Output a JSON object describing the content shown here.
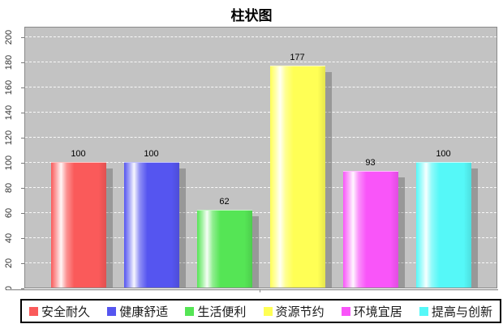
{
  "chart_data": {
    "type": "bar",
    "title": "柱状图",
    "categories": [
      "安全耐久",
      "健康舒适",
      "生活便利",
      "资源节约",
      "环境宜居",
      "提高与创新"
    ],
    "values": [
      100,
      100,
      62,
      177,
      93,
      100
    ],
    "colors": [
      "#fa5a5a",
      "#5555f0",
      "#55e555",
      "#ffff55",
      "#f955f9",
      "#55f8f8"
    ],
    "xlabel": "",
    "ylabel": "",
    "ylim": [
      0,
      200
    ],
    "yticks": [
      0,
      20,
      40,
      60,
      80,
      100,
      120,
      140,
      160,
      180,
      200
    ],
    "grid": "horizontal-white-dashed",
    "plot_bg_color": "#c3c3c3",
    "legend_position": "bottom",
    "value_labels_shown": true
  }
}
